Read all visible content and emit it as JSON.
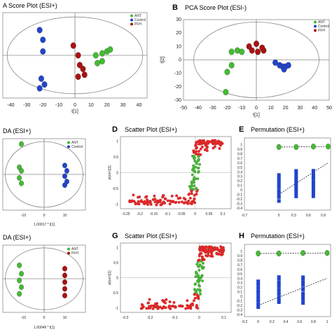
{
  "panel_labels": {
    "B": "B",
    "D": "D",
    "E": "E",
    "G": "G",
    "H": "H"
  },
  "titles": {
    "A": "A Score Plot (ESI+)",
    "B": "PCA Score Plot (ESI-)",
    "C": "DA (ESI+)",
    "D": "Scatter Plot (ESI+)",
    "E": "Permutation (ESI+)",
    "F": "DA (ESI+)",
    "G": "Scatter Plot (ESI+)",
    "H": "Permutation (ESI+)"
  },
  "colors": {
    "ant": "#44bb33",
    "control": "#2244cc",
    "pfh": "#aa1111",
    "scatter_red": "#ee2222",
    "scatter_green": "#44bb33",
    "perm_blue": "#2244cc"
  },
  "chart_data": [
    {
      "id": "A",
      "type": "scatter",
      "title": "A Score Plot (ESI+)",
      "xlabel": "t[1]",
      "ylabel": "",
      "xlim": [
        -45,
        45
      ],
      "ylim": [
        -22,
        22
      ],
      "xticks": [
        "-40",
        "-30",
        "-20",
        "-10",
        "0",
        "10",
        "20",
        "30",
        "40"
      ],
      "legend": [
        "ANT",
        "Control",
        "PFH"
      ],
      "series": [
        {
          "name": "ANT",
          "points": [
            [
              13,
              0
            ],
            [
              17,
              1
            ],
            [
              20,
              2
            ],
            [
              22,
              3
            ],
            [
              17,
              -3
            ],
            [
              14,
              -4
            ]
          ]
        },
        {
          "name": "Control",
          "points": [
            [
              -22,
              13
            ],
            [
              -20,
              8
            ],
            [
              -20,
              2
            ],
            [
              -21,
              -12
            ],
            [
              -19,
              -15
            ],
            [
              -22,
              -17
            ]
          ]
        },
        {
          "name": "PFH",
          "points": [
            [
              -1,
              5
            ],
            [
              2,
              0
            ],
            [
              3,
              -5
            ],
            [
              5,
              -7
            ],
            [
              6,
              -10
            ],
            [
              2,
              -11
            ]
          ]
        }
      ]
    },
    {
      "id": "B",
      "type": "scatter",
      "title": "PCA Score Plot (ESI-)",
      "xlabel": "t[1]",
      "ylabel": "t[2]",
      "xlim": [
        -50,
        50
      ],
      "ylim": [
        -30,
        30
      ],
      "xticks": [
        "-50",
        "-40",
        "-30",
        "-20",
        "-10",
        "0",
        "10",
        "20",
        "30",
        "40",
        "50"
      ],
      "yticks": [
        "30",
        "20",
        "10",
        "0",
        "-10",
        "-20",
        "-30"
      ],
      "legend": [
        "ANT",
        "Control",
        "PFH"
      ],
      "series": [
        {
          "name": "ANT",
          "points": [
            [
              -17,
              6
            ],
            [
              -13,
              7
            ],
            [
              -10,
              6
            ],
            [
              -17,
              -4
            ],
            [
              -20,
              -9
            ],
            [
              -21,
              -24
            ]
          ]
        },
        {
          "name": "Control",
          "points": [
            [
              13,
              -2
            ],
            [
              16,
              -4
            ],
            [
              18,
              -5
            ],
            [
              19,
              -7
            ],
            [
              20,
              -5
            ],
            [
              22,
              -4
            ]
          ]
        },
        {
          "name": "PFH",
          "points": [
            [
              -5,
              10
            ],
            [
              0,
              12
            ],
            [
              -3,
              7
            ],
            [
              1,
              6
            ],
            [
              5,
              7
            ],
            [
              4,
              9
            ]
          ]
        }
      ]
    },
    {
      "id": "C",
      "type": "scatter",
      "title": "DA (ESI+)",
      "xlabel": "1.00017 * t[1]",
      "ylabel": "",
      "xlim": [
        -20,
        20
      ],
      "ylim": [
        -20,
        20
      ],
      "xticks": [
        "-10",
        "0",
        "10"
      ],
      "legend": [
        "ANT",
        "Control"
      ],
      "series": [
        {
          "name": "ANT",
          "points": [
            [
              -11,
              17
            ],
            [
              -12,
              4
            ],
            [
              -11,
              2
            ],
            [
              -12,
              -2
            ],
            [
              -11,
              -5
            ]
          ]
        },
        {
          "name": "Control",
          "points": [
            [
              10,
              5
            ],
            [
              11,
              2
            ],
            [
              10,
              -1
            ],
            [
              11,
              -4
            ],
            [
              10,
              -6
            ]
          ]
        }
      ]
    },
    {
      "id": "D",
      "type": "scatter",
      "title": "Scatter Plot (ESI+)",
      "xlabel": "",
      "ylabel": "p(corr)[1]",
      "xlim": [
        -0.27,
        0.13
      ],
      "ylim": [
        -1.15,
        1.15
      ],
      "xticks": [
        "-0.25",
        "-0.2",
        "-0.15",
        "-0.1",
        "-0.05",
        "0",
        "0.05",
        "0.1"
      ],
      "yticks": [
        "1",
        "0.5",
        "0",
        "-0.5",
        "-1"
      ]
    },
    {
      "id": "E",
      "type": "scatter",
      "title": "Permutation (ESI+)",
      "xlabel": "",
      "ylabel": "",
      "xlim": [
        -0.7,
        1.05
      ],
      "ylim": [
        -0.45,
        1.15
      ],
      "xticks": [
        "-0.7",
        "0",
        "0.3",
        "0.6",
        "0.9"
      ],
      "yticks": [
        "1",
        "0.9",
        "0.8",
        "0.7",
        "0.6",
        "0.5",
        "0.4",
        "0.3",
        "0.2",
        "0.1",
        "0",
        "-0.1",
        "-0.2",
        "-0.3",
        "-0.4"
      ],
      "r2_line": [
        [
          0,
          0.95
        ],
        [
          1,
          0.96
        ]
      ],
      "q2_line": [
        [
          0,
          -0.1
        ],
        [
          1,
          0.6
        ]
      ],
      "r2_points": [
        [
          0,
          0.95
        ],
        [
          0.35,
          0.95
        ],
        [
          0.7,
          0.96
        ],
        [
          1,
          0.96
        ]
      ]
    },
    {
      "id": "F",
      "type": "scatter",
      "title": "DA (ESI+)",
      "xlabel": "1.00049 * t[1]",
      "ylabel": "",
      "xlim": [
        -20,
        20
      ],
      "ylim": [
        -20,
        20
      ],
      "xticks": [
        "-10",
        "0",
        "10"
      ],
      "legend": [
        "ANT",
        "PFH"
      ],
      "series": [
        {
          "name": "ANT",
          "points": [
            [
              -12,
              8
            ],
            [
              -11,
              3
            ],
            [
              -12,
              -1
            ],
            [
              -11,
              -5
            ],
            [
              -12,
              -9
            ]
          ]
        },
        {
          "name": "PFH",
          "points": [
            [
              10,
              6
            ],
            [
              10,
              2
            ],
            [
              10,
              -2
            ],
            [
              10,
              -6
            ],
            [
              10,
              -10
            ]
          ]
        }
      ]
    },
    {
      "id": "G",
      "type": "scatter",
      "title": "Scatter Plot (ESI+)",
      "xlabel": "",
      "ylabel": "p(corr)[1]",
      "xlim": [
        -0.32,
        0.13
      ],
      "ylim": [
        -1.15,
        1.15
      ],
      "xticks": [
        "-0.3",
        "-0.2",
        "-0.1",
        "0",
        "0.1"
      ],
      "yticks": [
        "1",
        "0.5",
        "0",
        "-0.5",
        "-1"
      ]
    },
    {
      "id": "H",
      "type": "scatter",
      "title": "Permutation (ESI+)",
      "xlabel": "",
      "ylabel": "",
      "xlim": [
        -0.2,
        1.05
      ],
      "ylim": [
        -0.45,
        1.15
      ],
      "xticks": [
        "-0.2",
        "0",
        "0.2",
        "0.4",
        "0.6",
        "0.8",
        "1"
      ],
      "yticks": [
        "1",
        "0.9",
        "0.8",
        "0.7",
        "0.6",
        "0.5",
        "0.4",
        "0.3",
        "0.2",
        "0.1",
        "0",
        "-0.1",
        "-0.2",
        "-0.3",
        "-0.4"
      ],
      "r2_line": [
        [
          0,
          0.95
        ],
        [
          1,
          0.96
        ]
      ],
      "q2_line": [
        [
          0,
          -0.2
        ],
        [
          1,
          0.4
        ]
      ],
      "r2_points": [
        [
          0,
          0.95
        ],
        [
          0.3,
          0.95
        ],
        [
          0.65,
          0.96
        ],
        [
          1,
          0.96
        ]
      ]
    }
  ]
}
